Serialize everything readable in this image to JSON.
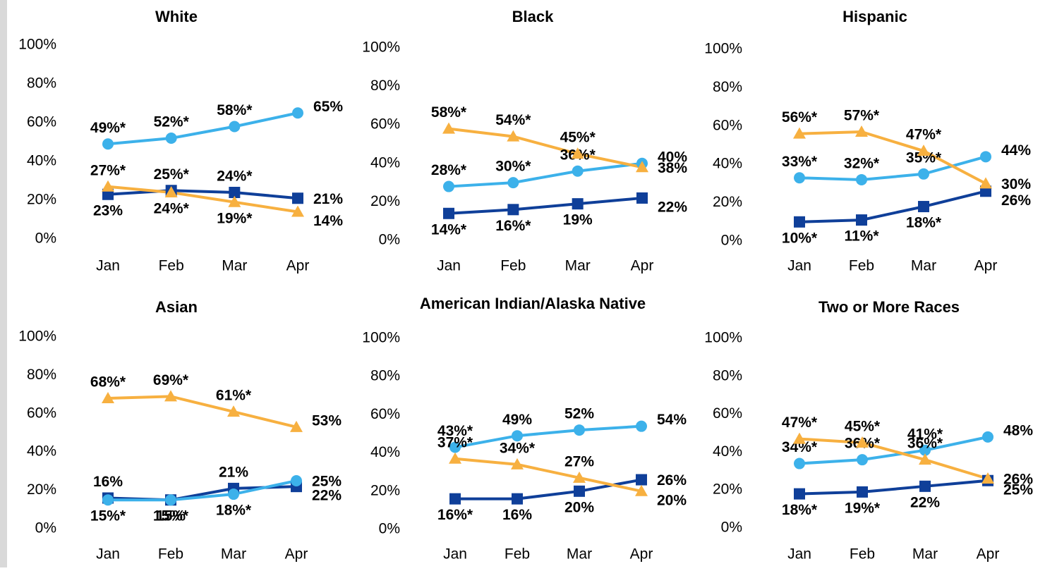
{
  "chart_data": [
    {
      "type": "line",
      "title": "White",
      "categories": [
        "Jan",
        "Feb",
        "Mar",
        "Apr"
      ],
      "ylim": [
        0,
        100
      ],
      "yticks": [
        {
          "value": 0,
          "label": "0%"
        },
        {
          "value": 20,
          "label": "20%"
        },
        {
          "value": 40,
          "label": "40%"
        },
        {
          "value": 60,
          "label": "60%"
        },
        {
          "value": 80,
          "label": "80%"
        },
        {
          "value": 100,
          "label": "100%"
        }
      ],
      "series": [
        {
          "color": "#0f3f99",
          "marker": "square",
          "values": [
            23,
            25,
            24,
            21
          ],
          "value_labels": [
            "23%",
            "25%*",
            "24%*",
            "21%"
          ]
        },
        {
          "color": "#3cb1ea",
          "marker": "circle",
          "values": [
            49,
            52,
            58,
            65
          ],
          "value_labels": [
            "49%*",
            "52%*",
            "58%*",
            "65%"
          ]
        },
        {
          "color": "#f7b040",
          "marker": "triangle",
          "values": [
            27,
            24,
            19,
            14
          ],
          "value_labels": [
            "27%*",
            "24%*",
            "19%*",
            "14%"
          ]
        }
      ]
    },
    {
      "type": "line",
      "title": "Black",
      "categories": [
        "Jan",
        "Feb",
        "Mar",
        "Apr"
      ],
      "ylim": [
        0,
        100
      ],
      "yticks": [
        {
          "value": 0,
          "label": "0%"
        },
        {
          "value": 20,
          "label": "20%"
        },
        {
          "value": 40,
          "label": "40%"
        },
        {
          "value": 60,
          "label": "60%"
        },
        {
          "value": 80,
          "label": "80%"
        },
        {
          "value": 100,
          "label": "100%"
        }
      ],
      "series": [
        {
          "color": "#0f3f99",
          "marker": "square",
          "values": [
            14,
            16,
            19,
            22
          ],
          "value_labels": [
            "14%*",
            "16%*",
            "19%",
            "22%"
          ]
        },
        {
          "color": "#3cb1ea",
          "marker": "circle",
          "values": [
            28,
            30,
            36,
            40
          ],
          "value_labels": [
            "28%*",
            "30%*",
            "36%*",
            "40%"
          ]
        },
        {
          "color": "#f7b040",
          "marker": "triangle",
          "values": [
            58,
            54,
            45,
            38
          ],
          "value_labels": [
            "58%*",
            "54%*",
            "45%*",
            "38%"
          ]
        }
      ]
    },
    {
      "type": "line",
      "title": "Hispanic",
      "categories": [
        "Jan",
        "Feb",
        "Mar",
        "Apr"
      ],
      "ylim": [
        0,
        100
      ],
      "yticks": [
        {
          "value": 0,
          "label": "0%"
        },
        {
          "value": 20,
          "label": "20%"
        },
        {
          "value": 40,
          "label": "40%"
        },
        {
          "value": 60,
          "label": "60%"
        },
        {
          "value": 80,
          "label": "80%"
        },
        {
          "value": 100,
          "label": "100%"
        }
      ],
      "series": [
        {
          "color": "#0f3f99",
          "marker": "square",
          "values": [
            10,
            11,
            18,
            26
          ],
          "value_labels": [
            "10%*",
            "11%*",
            "18%*",
            "26%"
          ]
        },
        {
          "color": "#3cb1ea",
          "marker": "circle",
          "values": [
            33,
            32,
            35,
            44
          ],
          "value_labels": [
            "33%*",
            "32%*",
            "35%*",
            "44%"
          ]
        },
        {
          "color": "#f7b040",
          "marker": "triangle",
          "values": [
            56,
            57,
            47,
            30
          ],
          "value_labels": [
            "56%*",
            "57%*",
            "47%*",
            "30%"
          ]
        }
      ]
    },
    {
      "type": "line",
      "title": "Asian",
      "categories": [
        "Jan",
        "Feb",
        "Mar",
        "Apr"
      ],
      "ylim": [
        0,
        100
      ],
      "yticks": [
        {
          "value": 0,
          "label": "0%"
        },
        {
          "value": 20,
          "label": "20%"
        },
        {
          "value": 40,
          "label": "40%"
        },
        {
          "value": 60,
          "label": "60%"
        },
        {
          "value": 80,
          "label": "80%"
        },
        {
          "value": 100,
          "label": "100%"
        }
      ],
      "series": [
        {
          "color": "#0f3f99",
          "marker": "square",
          "values": [
            16,
            15,
            21,
            22
          ],
          "value_labels": [
            "16%",
            "15%",
            "21%",
            "22%"
          ]
        },
        {
          "color": "#3cb1ea",
          "marker": "circle",
          "values": [
            15,
            15,
            18,
            25
          ],
          "value_labels": [
            "15%*",
            "15%*",
            "18%*",
            "25%"
          ]
        },
        {
          "color": "#f7b040",
          "marker": "triangle",
          "values": [
            68,
            69,
            61,
            53
          ],
          "value_labels": [
            "68%*",
            "69%*",
            "61%*",
            "53%"
          ]
        }
      ]
    },
    {
      "type": "line",
      "title": "American Indian/Alaska Native",
      "categories": [
        "Jan",
        "Feb",
        "Mar",
        "Apr"
      ],
      "ylim": [
        0,
        100
      ],
      "yticks": [
        {
          "value": 0,
          "label": "0%"
        },
        {
          "value": 20,
          "label": "20%"
        },
        {
          "value": 40,
          "label": "40%"
        },
        {
          "value": 60,
          "label": "60%"
        },
        {
          "value": 80,
          "label": "80%"
        },
        {
          "value": 100,
          "label": "100%"
        }
      ],
      "series": [
        {
          "color": "#0f3f99",
          "marker": "square",
          "values": [
            16,
            16,
            20,
            26
          ],
          "value_labels": [
            "16%*",
            "16%",
            "20%",
            "26%"
          ]
        },
        {
          "color": "#3cb1ea",
          "marker": "circle",
          "values": [
            43,
            49,
            52,
            54
          ],
          "value_labels": [
            "43%*",
            "49%",
            "52%",
            "54%"
          ]
        },
        {
          "color": "#f7b040",
          "marker": "triangle",
          "values": [
            37,
            34,
            27,
            20
          ],
          "value_labels": [
            "37%*",
            "34%*",
            "27%",
            "20%"
          ]
        }
      ]
    },
    {
      "type": "line",
      "title": "Two or More Races",
      "categories": [
        "Jan",
        "Feb",
        "Mar",
        "Apr"
      ],
      "ylim": [
        0,
        100
      ],
      "yticks": [
        {
          "value": 0,
          "label": "0%"
        },
        {
          "value": 20,
          "label": "20%"
        },
        {
          "value": 40,
          "label": "40%"
        },
        {
          "value": 60,
          "label": "60%"
        },
        {
          "value": 80,
          "label": "80%"
        },
        {
          "value": 100,
          "label": "100%"
        }
      ],
      "series": [
        {
          "color": "#0f3f99",
          "marker": "square",
          "values": [
            18,
            19,
            22,
            25
          ],
          "value_labels": [
            "18%*",
            "19%*",
            "22%",
            "25%"
          ]
        },
        {
          "color": "#3cb1ea",
          "marker": "circle",
          "values": [
            34,
            36,
            41,
            48
          ],
          "value_labels": [
            "34%*",
            "36%*",
            "41%*",
            "48%"
          ]
        },
        {
          "color": "#f7b040",
          "marker": "triangle",
          "values": [
            47,
            45,
            36,
            26
          ],
          "value_labels": [
            "47%*",
            "45%*",
            "36%*",
            "26%"
          ]
        }
      ]
    }
  ]
}
